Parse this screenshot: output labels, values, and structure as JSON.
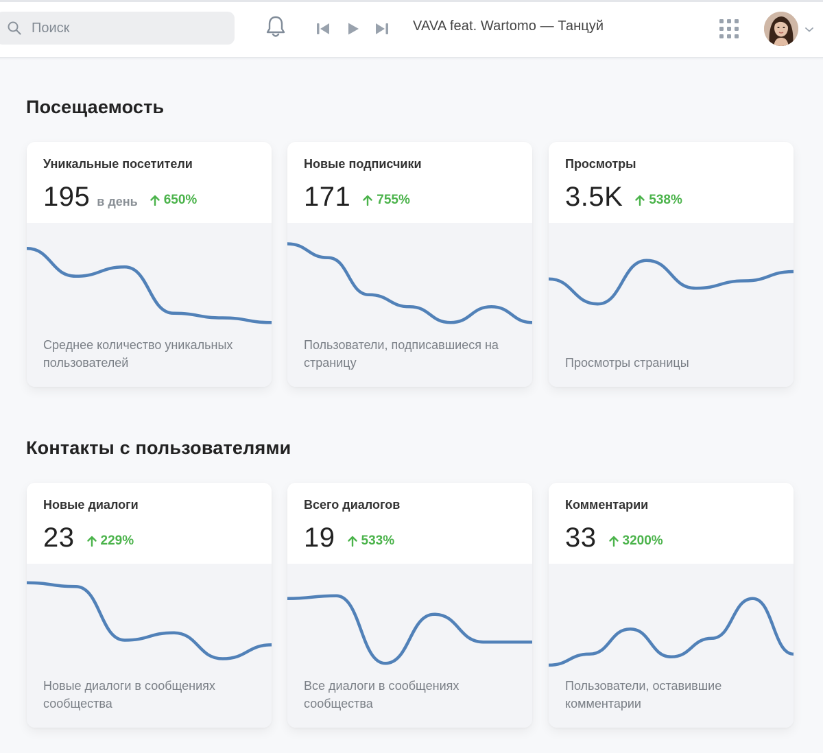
{
  "header": {
    "search_placeholder": "Поиск",
    "track_title": "VAVA feat. Wartomo — Танцуй",
    "icons": [
      "search-icon",
      "bell-icon",
      "previous-track-icon",
      "play-icon",
      "next-track-icon",
      "apps-grid-icon",
      "chevron-down-icon"
    ]
  },
  "colors": {
    "accent": "#5181b8",
    "growth": "#4bb34b",
    "background": "#f7f8fa"
  },
  "sections": [
    {
      "title": "Посещаемость",
      "cards": [
        {
          "title": "Уникальные посетители",
          "value": "195",
          "unit": "в день",
          "growth": "650%",
          "description": "Среднее количество уникальных пользователей",
          "trend": [
            0.85,
            0.55,
            0.65,
            0.15,
            0.1,
            0.05
          ]
        },
        {
          "title": "Новые подписчики",
          "value": "171",
          "unit": "",
          "growth": "755%",
          "description": "Пользователи, подписавшиеся на страницу",
          "trend": [
            0.9,
            0.75,
            0.35,
            0.22,
            0.05,
            0.22,
            0.05
          ]
        },
        {
          "title": "Просмотры",
          "value": "3.5K",
          "unit": "",
          "growth": "538%",
          "description": "Просмотры страницы",
          "trend": [
            0.52,
            0.25,
            0.72,
            0.42,
            0.5,
            0.6
          ]
        }
      ]
    },
    {
      "title": "Контакты с пользователями",
      "cards": [
        {
          "title": "Новые диалоги",
          "value": "23",
          "unit": "",
          "growth": "229%",
          "description": "Новые диалоги в сообщениях сообщества",
          "trend": [
            0.92,
            0.88,
            0.3,
            0.38,
            0.1,
            0.25
          ]
        },
        {
          "title": "Всего диалогов",
          "value": "19",
          "unit": "",
          "growth": "533%",
          "description": "Все диалоги в сообщениях сообщества",
          "trend": [
            0.75,
            0.78,
            0.05,
            0.58,
            0.28,
            0.28
          ]
        },
        {
          "title": "Комментарии",
          "value": "33",
          "unit": "",
          "growth": "3200%",
          "description": "Пользователи, оставившие комментарии",
          "trend": [
            0.03,
            0.15,
            0.42,
            0.12,
            0.32,
            0.75,
            0.15
          ]
        }
      ]
    }
  ]
}
